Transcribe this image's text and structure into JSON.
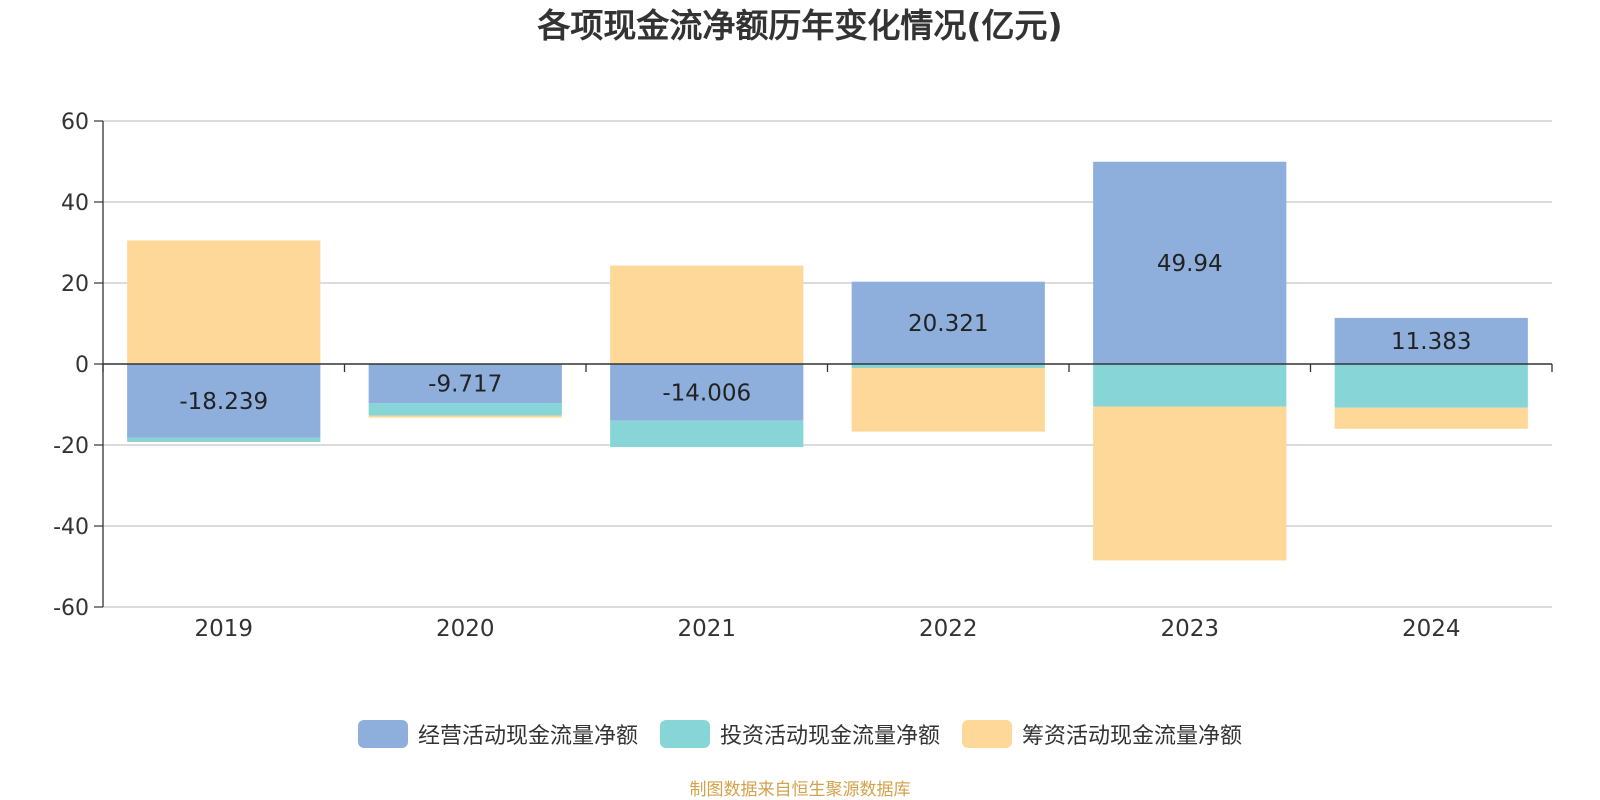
{
  "chart_data": {
    "type": "bar",
    "stacked": true,
    "title": "各项现金流净额历年变化情况(亿元)",
    "categories": [
      "2019",
      "2020",
      "2021",
      "2022",
      "2023",
      "2024"
    ],
    "series": [
      {
        "name": "经营活动现金流量净额",
        "color": "#8eaedb",
        "values": [
          -18.239,
          -9.717,
          -14.006,
          20.321,
          49.94,
          11.383
        ],
        "labels": [
          "-18.239",
          "-9.717",
          "-14.006",
          "20.321",
          "49.94",
          "11.383"
        ]
      },
      {
        "name": "投资活动现金流量净额",
        "color": "#88d5d8",
        "values": [
          -1.0,
          -3.0,
          -6.5,
          -1.0,
          -10.5,
          -10.8
        ]
      },
      {
        "name": "筹资活动现金流量净额",
        "color": "#fed898",
        "values": [
          30.5,
          -0.5,
          24.3,
          -15.7,
          -38.0,
          -5.2
        ]
      }
    ],
    "yticks": [
      "60",
      "40",
      "20",
      "0",
      "-20",
      "-40",
      "-60"
    ],
    "ylim": [
      -60,
      60
    ],
    "grid": true,
    "legend_position": "bottom"
  },
  "source": "制图数据来自恒生聚源数据库"
}
